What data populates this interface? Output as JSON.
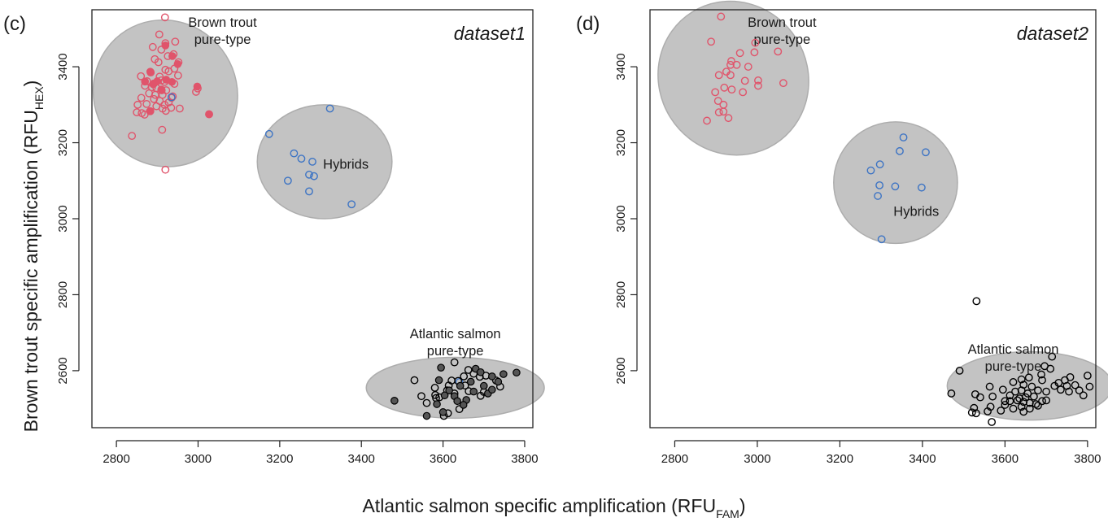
{
  "axis_labels": {
    "y_main": "Brown trout specific amplification (RFU",
    "y_sub": "HEX",
    "y_close": ")",
    "x_main": "Atlantic salmon specific amplification (RFU",
    "x_sub": "FAM",
    "x_close": ")"
  },
  "colors": {
    "brown_trout": "#e0546b",
    "hybrid": "#3d74c4",
    "atlantic_salmon": "#000000",
    "filled_salmon": "#555555",
    "ellipse_fill": "#c3c3c3",
    "ellipse_edge": "#adadad"
  },
  "chart_data": [
    {
      "type": "scatter",
      "panel_label": "(c)",
      "dataset_label": "dataset1",
      "xlim": [
        2740,
        3820
      ],
      "ylim": [
        2450,
        3550
      ],
      "xticks": [
        2800,
        3000,
        3200,
        3400,
        3600,
        3800
      ],
      "yticks": [
        2600,
        2800,
        3000,
        3200,
        3400
      ],
      "grid": false,
      "group_labels": [
        {
          "lines": [
            "Brown trout",
            "pure-type"
          ],
          "x": 3060,
          "y": 3505
        },
        {
          "lines": [
            "Hybrids"
          ],
          "x": 3362,
          "y": 3132
        },
        {
          "lines": [
            "Atlantic salmon",
            "pure-type"
          ],
          "x": 3630,
          "y": 2685
        }
      ],
      "ellipses": [
        {
          "cx": 2920,
          "cy": 3330,
          "rx": 175,
          "ry": 195,
          "rotate": -32
        },
        {
          "cx": 3310,
          "cy": 3150,
          "rx": 165,
          "ry": 150,
          "rotate": 0
        },
        {
          "cx": 3630,
          "cy": 2555,
          "rx": 218,
          "ry": 80,
          "rotate": 0
        }
      ],
      "series": [
        {
          "name": "Brown trout",
          "color": "#e0546b",
          "points": [
            [
              2919,
              3530
            ],
            [
              2920,
              3462
            ],
            [
              2944,
              3466
            ],
            [
              2889,
              3452
            ],
            [
              2910,
              3445
            ],
            [
              2940,
              3433
            ],
            [
              2926,
              3428
            ],
            [
              2894,
              3420
            ],
            [
              2903,
              3412
            ],
            [
              2952,
              3412
            ],
            [
              2942,
              3395
            ],
            [
              2920,
              3392
            ],
            [
              2928,
              3388
            ],
            [
              2884,
              3385
            ],
            [
              2951,
              3377
            ],
            [
              2906,
              3374
            ],
            [
              2860,
              3375
            ],
            [
              2875,
              3362
            ],
            [
              2910,
              3364
            ],
            [
              2892,
              3356
            ],
            [
              2918,
              3360
            ],
            [
              2942,
              3355
            ],
            [
              2870,
              3350
            ],
            [
              2887,
              3346
            ],
            [
              2898,
              3344
            ],
            [
              2910,
              3340
            ],
            [
              2922,
              3338
            ],
            [
              2999,
              3343
            ],
            [
              2995,
              3334
            ],
            [
              2880,
              3330
            ],
            [
              2895,
              3326
            ],
            [
              2913,
              3326
            ],
            [
              2938,
              3322
            ],
            [
              2861,
              3318
            ],
            [
              2892,
              3315
            ],
            [
              2906,
              3310
            ],
            [
              2928,
              3306
            ],
            [
              2874,
              3302
            ],
            [
              2852,
              3300
            ],
            [
              2898,
              3296
            ],
            [
              2913,
              3290
            ],
            [
              2934,
              3292
            ],
            [
              2955,
              3290
            ],
            [
              2883,
              3283
            ],
            [
              2921,
              3284
            ],
            [
              2862,
              3278
            ],
            [
              2850,
              3280
            ],
            [
              2869,
              3274
            ],
            [
              3027,
              3275
            ],
            [
              2838,
              3218
            ],
            [
              2912,
              3234
            ],
            [
              2920,
              3129
            ],
            [
              2918,
              3300
            ],
            [
              2905,
              3485
            ],
            [
              2935,
              3318
            ]
          ],
          "filled": [
            [
              2890,
              3354
            ],
            [
              2900,
              3362
            ],
            [
              2922,
              3366
            ],
            [
              2936,
              3360
            ],
            [
              2950,
              3407
            ],
            [
              2920,
              3456
            ],
            [
              2870,
              3361
            ],
            [
              2882,
              3283
            ],
            [
              2911,
              3338
            ],
            [
              2937,
              3428
            ],
            [
              2998,
              3348
            ],
            [
              3027,
              3275
            ],
            [
              2883,
              3387
            ]
          ]
        },
        {
          "name": "Hybrids",
          "color": "#3d74c4",
          "points": [
            [
              3323,
              3290
            ],
            [
              3174,
              3223
            ],
            [
              3235,
              3172
            ],
            [
              3253,
              3158
            ],
            [
              3280,
              3150
            ],
            [
              3220,
              3100
            ],
            [
              3272,
              3116
            ],
            [
              3284,
              3112
            ],
            [
              3272,
              3072
            ],
            [
              3376,
              3038
            ],
            [
              2935,
              3320
            ],
            [
              3640,
              2570
            ]
          ],
          "filled": []
        },
        {
          "name": "Atlantic salmon",
          "color": "#000000",
          "points": [
            [
              3530,
              2575
            ],
            [
              3547,
              2533
            ],
            [
              3581,
              2536
            ],
            [
              3591,
              2530
            ],
            [
              3621,
              2574
            ],
            [
              3628,
              2622
            ],
            [
              3614,
              2561
            ],
            [
              3637,
              2573
            ],
            [
              3651,
              2585
            ],
            [
              3662,
              2602
            ],
            [
              3690,
              2584
            ],
            [
              3705,
              2587
            ],
            [
              3640,
              2499
            ],
            [
              3612,
              2488
            ],
            [
              3602,
              2481
            ],
            [
              3580,
              2555
            ],
            [
              3610,
              2548
            ],
            [
              3663,
              2546
            ],
            [
              3692,
              2534
            ],
            [
              3654,
              2561
            ],
            [
              3583,
              2528
            ],
            [
              3700,
              2544
            ],
            [
              3730,
              2574
            ],
            [
              3740,
              2558
            ],
            [
              3675,
              2592
            ],
            [
              3560,
              2515
            ],
            [
              3628,
              2540
            ]
          ],
          "filled": [
            [
              3481,
              2521
            ],
            [
              3560,
              2481
            ],
            [
              3585,
              2512
            ],
            [
              3595,
              2608
            ],
            [
              3600,
              2491
            ],
            [
              3615,
              2548
            ],
            [
              3628,
              2533
            ],
            [
              3642,
              2560
            ],
            [
              3657,
              2523
            ],
            [
              3668,
              2571
            ],
            [
              3680,
              2605
            ],
            [
              3692,
              2596
            ],
            [
              3700,
              2560
            ],
            [
              3710,
              2540
            ],
            [
              3720,
              2585
            ],
            [
              3735,
              2571
            ],
            [
              3748,
              2591
            ],
            [
              3780,
              2595
            ],
            [
              3650,
              2510
            ],
            [
              3604,
              2535
            ],
            [
              3635,
              2520
            ],
            [
              3590,
              2575
            ],
            [
              3675,
              2545
            ],
            [
              3720,
              2550
            ]
          ]
        }
      ]
    },
    {
      "type": "scatter",
      "panel_label": "(d)",
      "dataset_label": "dataset2",
      "xlim": [
        2740,
        3820
      ],
      "ylim": [
        2450,
        3550
      ],
      "xticks": [
        2800,
        3000,
        3200,
        3400,
        3600,
        3800
      ],
      "yticks": [
        2600,
        2800,
        3000,
        3200,
        3400
      ],
      "grid": false,
      "group_labels": [
        {
          "lines": [
            "Brown trout",
            "pure-type"
          ],
          "x": 3060,
          "y": 3505
        },
        {
          "lines": [
            "Hybrids"
          ],
          "x": 3385,
          "y": 3008
        },
        {
          "lines": [
            "Atlantic salmon",
            "pure-type"
          ],
          "x": 3620,
          "y": 2645
        }
      ],
      "ellipses": [
        {
          "cx": 2942,
          "cy": 3370,
          "rx": 180,
          "ry": 205,
          "rotate": -32
        },
        {
          "cx": 3335,
          "cy": 3095,
          "rx": 150,
          "ry": 160,
          "rotate": 0
        },
        {
          "cx": 3660,
          "cy": 2560,
          "rx": 200,
          "ry": 90,
          "rotate": 0
        }
      ],
      "series": [
        {
          "name": "Brown trout",
          "color": "#e0546b",
          "points": [
            [
              2912,
              3532
            ],
            [
              2888,
              3466
            ],
            [
              2995,
              3463
            ],
            [
              3050,
              3440
            ],
            [
              2958,
              3436
            ],
            [
              2993,
              3438
            ],
            [
              2937,
              3415
            ],
            [
              2935,
              3405
            ],
            [
              2950,
              3405
            ],
            [
              2978,
              3400
            ],
            [
              2907,
              3378
            ],
            [
              2935,
              3378
            ],
            [
              2925,
              3387
            ],
            [
              2970,
              3363
            ],
            [
              3002,
              3364
            ],
            [
              3063,
              3357
            ],
            [
              3002,
              3350
            ],
            [
              2920,
              3345
            ],
            [
              2938,
              3340
            ],
            [
              2965,
              3333
            ],
            [
              2898,
              3333
            ],
            [
              2905,
              3310
            ],
            [
              2918,
              3300
            ],
            [
              2907,
              3280
            ],
            [
              2918,
              3282
            ],
            [
              2930,
              3265
            ],
            [
              2878,
              3258
            ]
          ],
          "filled": []
        },
        {
          "name": "Hybrids",
          "color": "#3d74c4",
          "points": [
            [
              3354,
              3214
            ],
            [
              3345,
              3178
            ],
            [
              3408,
              3175
            ],
            [
              3297,
              3143
            ],
            [
              3275,
              3127
            ],
            [
              3296,
              3088
            ],
            [
              3334,
              3085
            ],
            [
              3398,
              3082
            ],
            [
              3292,
              3060
            ],
            [
              3301,
              2946
            ]
          ],
          "filled": []
        },
        {
          "name": "Atlantic salmon",
          "color": "#000000",
          "points": [
            [
              3531,
              2783
            ],
            [
              3714,
              2637
            ],
            [
              3696,
              2612
            ],
            [
              3710,
              2605
            ],
            [
              3688,
              2590
            ],
            [
              3758,
              2583
            ],
            [
              3800,
              2587
            ],
            [
              3490,
              2600
            ],
            [
              3640,
              2577
            ],
            [
              3658,
              2582
            ],
            [
              3620,
              2570
            ],
            [
              3645,
              2563
            ],
            [
              3690,
              2575
            ],
            [
              3730,
              2568
            ],
            [
              3750,
              2560
            ],
            [
              3770,
              2562
            ],
            [
              3665,
              2558
            ],
            [
              3563,
              2558
            ],
            [
              3595,
              2550
            ],
            [
              3625,
              2545
            ],
            [
              3640,
              2548
            ],
            [
              3680,
              2548
            ],
            [
              3700,
              2545
            ],
            [
              3735,
              2550
            ],
            [
              3780,
              2548
            ],
            [
              3805,
              2558
            ],
            [
              3470,
              2540
            ],
            [
              3528,
              2538
            ],
            [
              3540,
              2530
            ],
            [
              3570,
              2532
            ],
            [
              3612,
              2535
            ],
            [
              3650,
              2530
            ],
            [
              3670,
              2532
            ],
            [
              3690,
              2520
            ],
            [
              3755,
              2545
            ],
            [
              3790,
              2535
            ],
            [
              3630,
              2522
            ],
            [
              3645,
              2518
            ],
            [
              3660,
              2515
            ],
            [
              3700,
              2522
            ],
            [
              3525,
              2502
            ],
            [
              3565,
              2505
            ],
            [
              3600,
              2510
            ],
            [
              3620,
              2500
            ],
            [
              3640,
              2505
            ],
            [
              3680,
              2508
            ],
            [
              3520,
              2490
            ],
            [
              3558,
              2493
            ],
            [
              3590,
              2495
            ],
            [
              3645,
              2492
            ],
            [
              3660,
              2500
            ],
            [
              3530,
              2488
            ],
            [
              3568,
              2465
            ],
            [
              3612,
              2520
            ],
            [
              3635,
              2527
            ],
            [
              3675,
              2512
            ],
            [
              3720,
              2560
            ],
            [
              3745,
              2575
            ],
            [
              3600,
              2520
            ],
            [
              3655,
              2540
            ]
          ],
          "filled": []
        }
      ]
    }
  ]
}
